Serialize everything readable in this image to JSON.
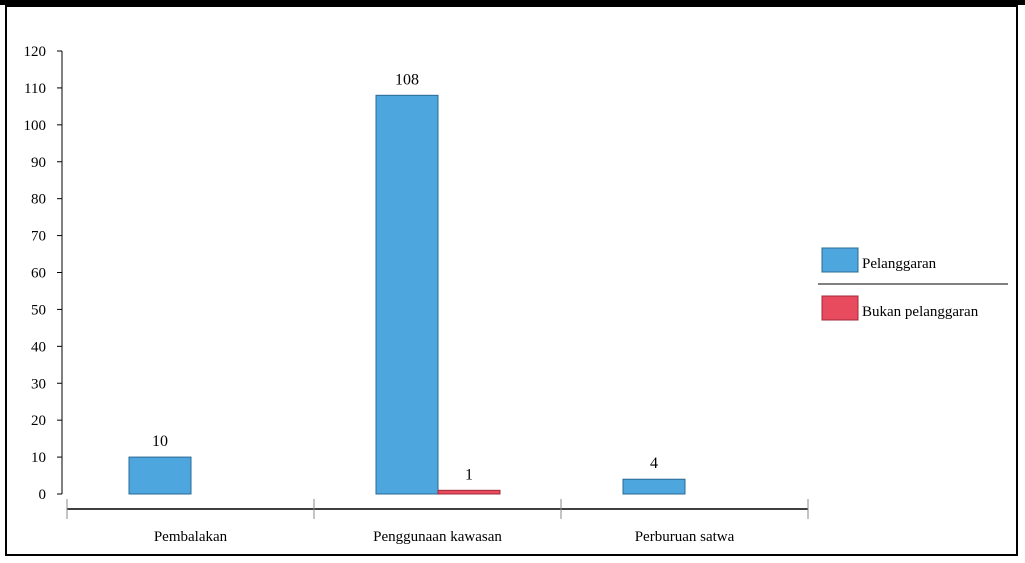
{
  "chart_data": {
    "type": "bar",
    "title": "",
    "xlabel": "",
    "ylabel": "",
    "categories": [
      "Pembalakan",
      "Penggunaan kawasan",
      "Perburuan satwa"
    ],
    "series": [
      {
        "name": "Pelanggaran",
        "values": [
          10,
          108,
          4
        ],
        "color": "#4da6dd"
      },
      {
        "name": "Bukan pelanggaran",
        "values": [
          null,
          1,
          null
        ],
        "color": "#e84b5e"
      }
    ],
    "data_labels": [
      [
        "10",
        "108",
        "4"
      ],
      [
        null,
        "1",
        null
      ]
    ],
    "ylim": [
      0,
      120
    ],
    "yticks": [
      0,
      10,
      20,
      30,
      40,
      50,
      60,
      70,
      80,
      90,
      100,
      110,
      120
    ],
    "grid": false,
    "legend_position": "right"
  },
  "colors": {
    "bar_stroke": "#2a6a95",
    "bar_stroke_red": "#a02a3a",
    "axis": "#000000"
  }
}
